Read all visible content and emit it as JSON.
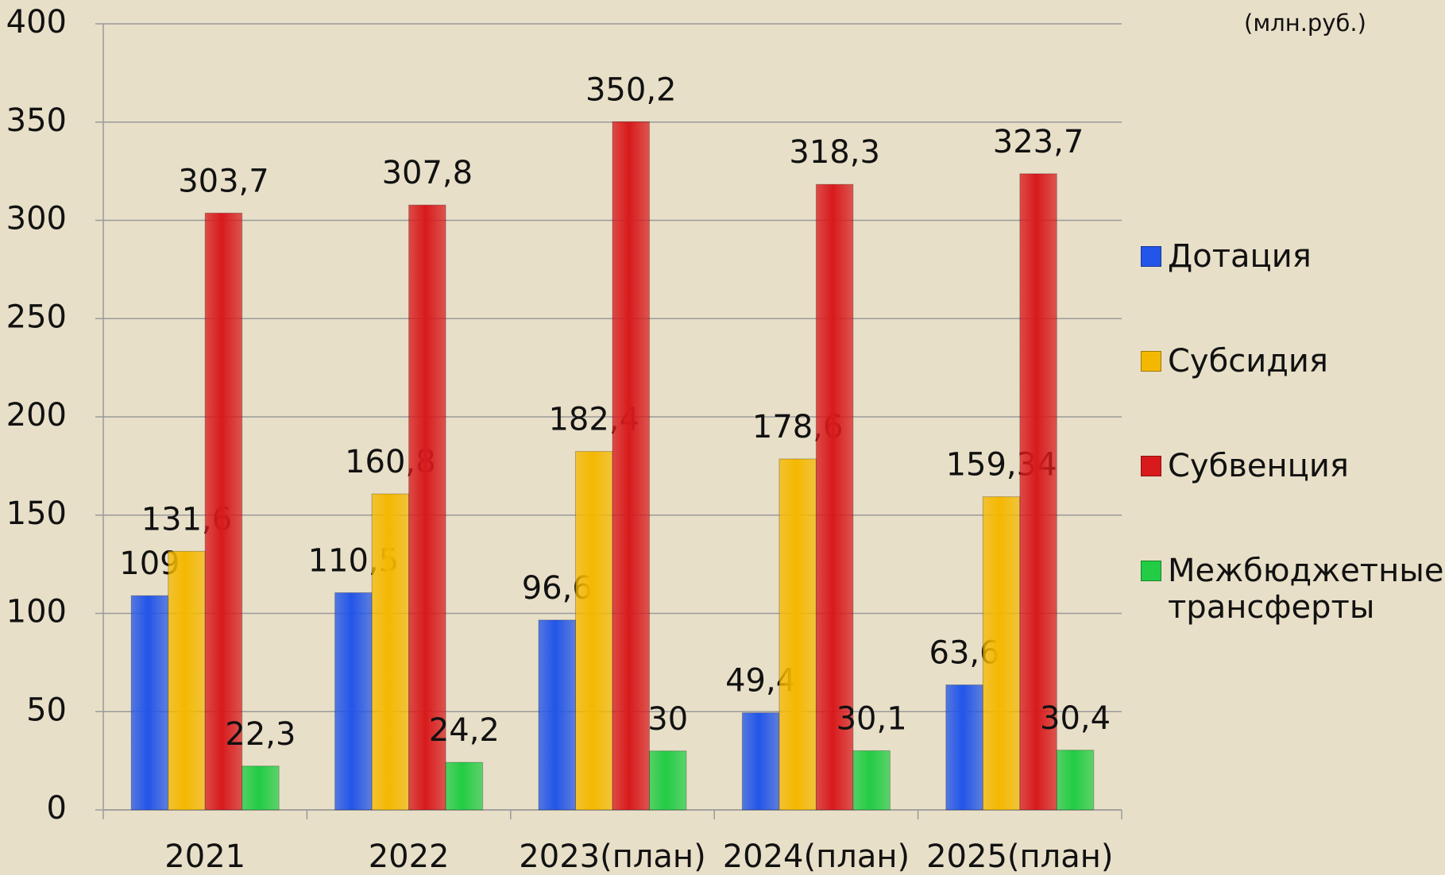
{
  "chart_data": {
    "type": "bar",
    "unit": "(млн.руб.)",
    "categories": [
      "2021",
      "2022",
      "2023(план)",
      "2024(план)",
      "2025(план)"
    ],
    "series": [
      {
        "name": "Дотация",
        "color": "#2255e8",
        "values": [
          109,
          110.5,
          96.6,
          49.4,
          63.6
        ],
        "value_labels": [
          "109",
          "110,5",
          "96,6",
          "49,4",
          "63,6"
        ]
      },
      {
        "name": "Субсидия",
        "color": "#f5b800",
        "values": [
          131.6,
          160.8,
          182.4,
          178.6,
          159.34
        ],
        "value_labels": [
          "131,6",
          "160,8",
          "182,4",
          "178,6",
          "159,34"
        ]
      },
      {
        "name": "Субвенция",
        "color": "#d81a1c",
        "values": [
          303.7,
          307.8,
          350.2,
          318.3,
          323.7
        ],
        "value_labels": [
          "303,7",
          "307,8",
          "350,2",
          "318,3",
          "323,7"
        ]
      },
      {
        "name": "Межбюджетные трансферты",
        "color": "#22cc44",
        "values": [
          22.3,
          24.2,
          30,
          30.1,
          30.4
        ],
        "value_labels": [
          "22,3",
          "24,2",
          "30",
          "30,1",
          "30,4"
        ]
      }
    ],
    "ylim": [
      0,
      400
    ],
    "yticks": [
      0,
      50,
      100,
      150,
      200,
      250,
      300,
      350,
      400
    ],
    "grid": true,
    "legend": "right"
  }
}
